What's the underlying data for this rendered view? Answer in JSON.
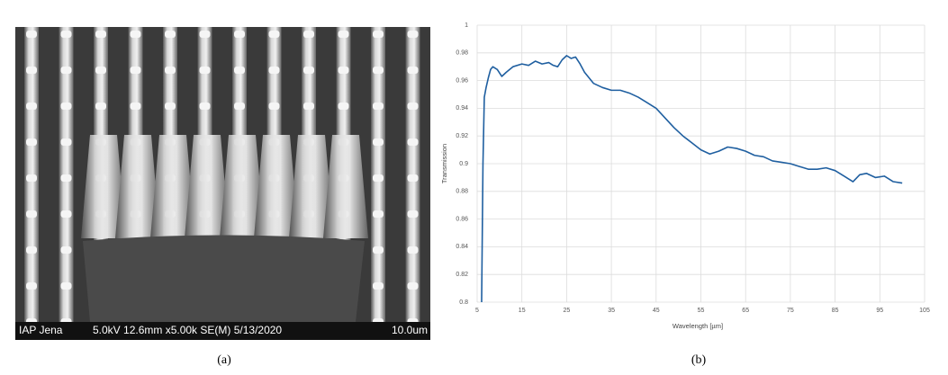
{
  "image_a": {
    "institute": "IAP Jena",
    "settings": "5.0kV 12.6mm x5.00k SE(M) 5/13/2020",
    "scale": "10.0um"
  },
  "captions": [
    "(a)",
    "(b)"
  ],
  "chart_data": {
    "type": "line",
    "xlabel": "Wavelength [µm]",
    "ylabel": "Transmission",
    "color": "#1f5fa0",
    "grid": true,
    "xlim": [
      5,
      105
    ],
    "xticks": [
      5,
      15,
      25,
      35,
      45,
      55,
      65,
      75,
      85,
      95,
      105
    ],
    "ylim": [
      0.8,
      1
    ],
    "yticks": [
      0.8,
      0.82,
      0.84,
      0.86,
      0.88,
      0.9,
      0.92,
      0.94,
      0.96,
      0.98,
      1
    ],
    "x": [
      6,
      6.3,
      6.6,
      7,
      7.5,
      8,
      8.5,
      9.5,
      10.5,
      11.5,
      13,
      15,
      16.5,
      18,
      19.5,
      21,
      22,
      23,
      24,
      25,
      26,
      27,
      28,
      29,
      30,
      31,
      33,
      35,
      37,
      39,
      41,
      43,
      45,
      47,
      49,
      51,
      53,
      55,
      57,
      59,
      61,
      63,
      65,
      67,
      69,
      71,
      73,
      75,
      77,
      79,
      81,
      83,
      85,
      87,
      89,
      90.5,
      92,
      94,
      96,
      98,
      100
    ],
    "values": [
      0.8,
      0.9,
      0.948,
      0.955,
      0.962,
      0.968,
      0.97,
      0.968,
      0.963,
      0.966,
      0.97,
      0.972,
      0.971,
      0.974,
      0.972,
      0.973,
      0.971,
      0.97,
      0.975,
      0.978,
      0.976,
      0.977,
      0.972,
      0.966,
      0.962,
      0.958,
      0.955,
      0.953,
      0.953,
      0.951,
      0.948,
      0.944,
      0.94,
      0.933,
      0.926,
      0.92,
      0.915,
      0.91,
      0.907,
      0.909,
      0.912,
      0.911,
      0.909,
      0.906,
      0.905,
      0.902,
      0.901,
      0.9,
      0.898,
      0.896,
      0.896,
      0.897,
      0.895,
      0.891,
      0.887,
      0.892,
      0.893,
      0.89,
      0.891,
      0.887,
      0.886
    ]
  }
}
